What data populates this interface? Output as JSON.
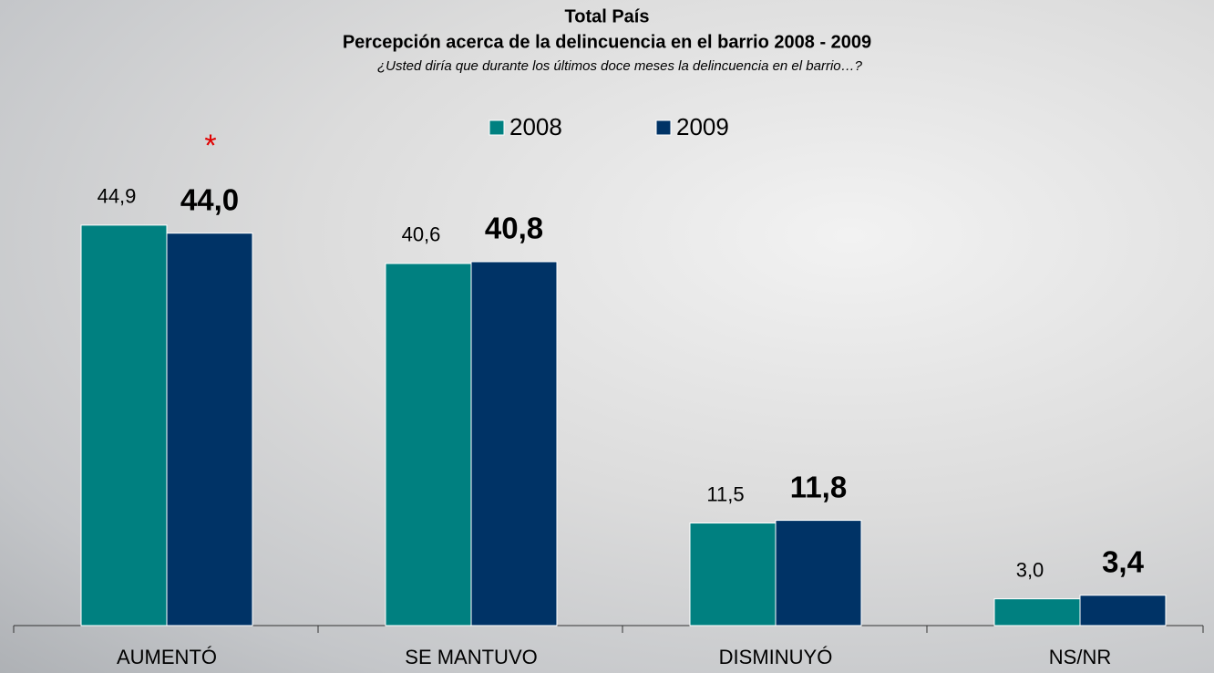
{
  "chart_data": {
    "type": "bar",
    "title": "Total País",
    "subtitle": "Percepción acerca de la delincuencia en el barrio 2008 - 2009",
    "question": "¿Usted diría que durante los últimos doce meses la delincuencia en el barrio…?",
    "annotation": "*",
    "categories": [
      "AUMENTÓ",
      "SE MANTUVO",
      "DISMINUYÓ",
      "NS/NR"
    ],
    "series": [
      {
        "name": "2008",
        "color": "#008080",
        "values": [
          44.9,
          40.6,
          11.5,
          3.0
        ],
        "value_labels": [
          "44,9",
          "40,6",
          "11,5",
          "3,0"
        ]
      },
      {
        "name": "2009",
        "color": "#003366",
        "values": [
          44.0,
          40.8,
          11.8,
          3.4
        ],
        "value_labels": [
          "44,0",
          "40,8",
          "11,8",
          "3,4"
        ]
      }
    ],
    "legend": "top"
  }
}
